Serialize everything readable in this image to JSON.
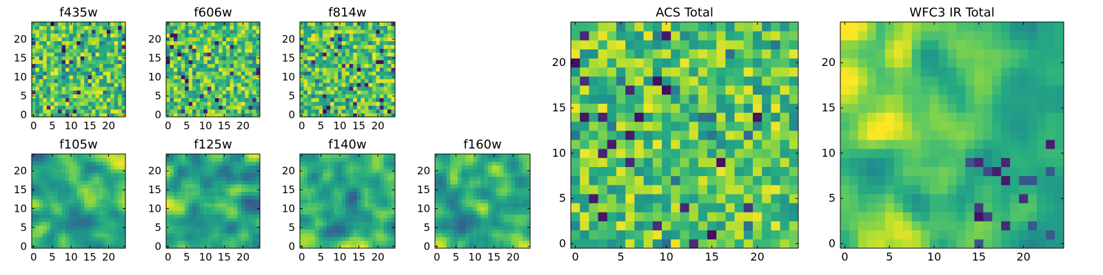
{
  "chart_data": [
    {
      "type": "heatmap",
      "title": "f435w",
      "grid_size": 25,
      "x_ticks": [
        0,
        5,
        10,
        15,
        20
      ],
      "y_ticks": [
        0,
        5,
        10,
        15,
        20
      ],
      "xlim": [
        -0.5,
        24.5
      ],
      "ylim": [
        -0.5,
        24.5
      ],
      "colormap": "viridis",
      "values": "25x25 pixel-noise intensities, values in [0,1], mostly 0.55-0.95 with scattered dark pixels"
    },
    {
      "type": "heatmap",
      "title": "f606w",
      "grid_size": 25,
      "x_ticks": [
        0,
        5,
        10,
        15,
        20
      ],
      "y_ticks": [
        0,
        5,
        10,
        15,
        20
      ],
      "xlim": [
        -0.5,
        24.5
      ],
      "ylim": [
        -0.5,
        24.5
      ],
      "colormap": "viridis",
      "values": "25x25 pixel-noise intensities, values in [0,1], mostly 0.45-0.95 with scattered dark pixels"
    },
    {
      "type": "heatmap",
      "title": "f814w",
      "grid_size": 25,
      "x_ticks": [
        0,
        5,
        10,
        15,
        20
      ],
      "y_ticks": [
        0,
        5,
        10,
        15,
        20
      ],
      "xlim": [
        -0.5,
        24.5
      ],
      "ylim": [
        -0.5,
        24.5
      ],
      "colormap": "viridis",
      "values": "25x25 pixel-noise intensities, values in [0,1], mostly 0.55-0.98 with scattered dark pixels"
    },
    {
      "type": "heatmap",
      "title": "f105w",
      "grid_size": 25,
      "x_ticks": [
        0,
        5,
        10,
        15,
        20
      ],
      "y_ticks": [
        0,
        5,
        10,
        15,
        20
      ],
      "xlim": [
        -0.5,
        24.5
      ],
      "ylim": [
        -0.5,
        24.5
      ],
      "colormap": "viridis",
      "values": "25x25 spatially correlated noise, values in [0,1], mostly 0.35-0.95"
    },
    {
      "type": "heatmap",
      "title": "f125w",
      "grid_size": 25,
      "x_ticks": [
        0,
        5,
        10,
        15,
        20
      ],
      "y_ticks": [
        0,
        5,
        10,
        15,
        20
      ],
      "xlim": [
        -0.5,
        24.5
      ],
      "ylim": [
        -0.5,
        24.5
      ],
      "colormap": "viridis",
      "values": "25x25 spatially correlated noise, values in [0,1], mostly 0.35-0.95"
    },
    {
      "type": "heatmap",
      "title": "f140w",
      "grid_size": 25,
      "x_ticks": [
        0,
        5,
        10,
        15,
        20
      ],
      "y_ticks": [
        0,
        5,
        10,
        15,
        20
      ],
      "xlim": [
        -0.5,
        24.5
      ],
      "ylim": [
        -0.5,
        24.5
      ],
      "colormap": "viridis",
      "values": "25x25 spatially correlated noise, values in [0,1], mostly 0.35-0.95"
    },
    {
      "type": "heatmap",
      "title": "f160w",
      "grid_size": 25,
      "x_ticks": [
        0,
        5,
        10,
        15,
        20
      ],
      "y_ticks": [
        0,
        5,
        10,
        15,
        20
      ],
      "xlim": [
        -0.5,
        24.5
      ],
      "ylim": [
        -0.5,
        24.5
      ],
      "colormap": "viridis",
      "values": "25x25 spatially correlated noise, values in [0,1], mostly 0.35-0.95"
    },
    {
      "type": "heatmap",
      "title": "ACS Total",
      "grid_size": 25,
      "x_ticks": [
        0,
        5,
        10,
        15,
        20
      ],
      "y_ticks": [
        0,
        5,
        10,
        15,
        20
      ],
      "xlim": [
        -0.5,
        24.5
      ],
      "ylim": [
        -0.5,
        24.5
      ],
      "colormap": "viridis",
      "values": "25x25 intensities, values in [0,1], mostly 0.5-0.95 with a few dark pixels"
    },
    {
      "type": "heatmap",
      "title": "WFC3 IR Total",
      "grid_size": 25,
      "x_ticks": [
        0,
        5,
        10,
        15,
        20
      ],
      "y_ticks": [
        0,
        5,
        10,
        15,
        20
      ],
      "xlim": [
        -0.5,
        24.5
      ],
      "ylim": [
        -0.5,
        24.5
      ],
      "colormap": "viridis",
      "values": "25x25 intensities, values in [0,1], brighter toward left side, darker patches at right"
    }
  ]
}
